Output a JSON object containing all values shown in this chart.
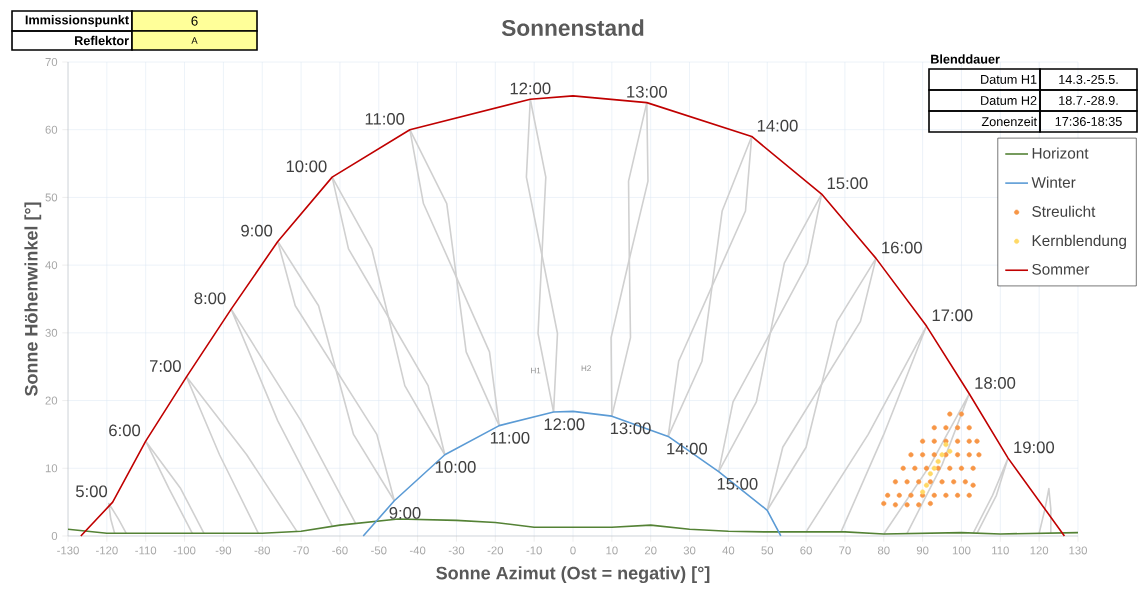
{
  "chart_data": {
    "type": "line",
    "title": "Sonnenstand",
    "xlabel": "Sonne Azimut (Ost = negativ) [°]",
    "ylabel": "Sonne Höhenwinkel [°]",
    "xlim": [
      -130,
      130
    ],
    "xticks": [
      -130,
      -120,
      -110,
      -100,
      -90,
      -80,
      -70,
      -60,
      -50,
      -40,
      -30,
      -20,
      -10,
      0,
      10,
      20,
      30,
      40,
      50,
      60,
      70,
      80,
      90,
      100,
      110,
      120,
      130
    ],
    "ylim": [
      0,
      70
    ],
    "yticks": [
      0,
      10,
      20,
      30,
      40,
      50,
      60,
      70
    ],
    "grid": true,
    "legend": "top right",
    "series": [
      {
        "color": "#d0d0d0",
        "x": [
          -118,
          -119,
          -119.5,
          -117,
          -115
        ],
        "values": [
          0.4,
          2.5,
          4.8,
          2.5,
          0.4
        ]
      },
      {
        "color": "#d0d0d0",
        "x": [
          -98,
          -104,
          -110,
          -101,
          -95
        ],
        "values": [
          0.4,
          7,
          14,
          7,
          0.4
        ]
      },
      {
        "color": "#d0d0d0",
        "x": [
          -81,
          -91,
          -99.5,
          -84,
          -71
        ],
        "values": [
          0.4,
          12,
          23.5,
          12,
          0.6
        ]
      },
      {
        "color": "#d0d0d0",
        "x": [
          -62,
          -76,
          -88,
          -70,
          -56
        ],
        "values": [
          1.5,
          17,
          33.5,
          17,
          1.9
        ]
      },
      {
        "color": "#d0d0d0",
        "x": [
          -76,
          -71.5,
          -61,
          -50.5,
          -46
        ],
        "values": [
          43.5,
          34,
          24.5,
          15,
          5.2
        ]
      },
      {
        "color": "#d0d0d0",
        "x": [
          -76,
          -65.5,
          -61,
          -56.5,
          -46
        ],
        "values": [
          43.5,
          34,
          24.5,
          15,
          5.2
        ]
      },
      {
        "color": "#d0d0d0",
        "x": [
          -62,
          -57.8,
          -47.5,
          -37.3,
          -33
        ],
        "values": [
          53,
          42.4,
          32.3,
          22.2,
          12
        ]
      },
      {
        "color": "#d0d0d0",
        "x": [
          -62,
          -51.8,
          -47.5,
          -43.3,
          -33
        ],
        "values": [
          53,
          42.4,
          32.3,
          22.2,
          12
        ]
      },
      {
        "color": "#d0d0d0",
        "x": [
          -42,
          -38.5,
          -30,
          -21.5,
          -19
        ],
        "values": [
          60,
          49.1,
          38.2,
          27.2,
          16.3
        ]
      },
      {
        "color": "#d0d0d0",
        "x": [
          -42,
          -32.5,
          -30,
          -27.5,
          -19
        ],
        "values": [
          60,
          49.1,
          38.2,
          27.2,
          16.3
        ]
      },
      {
        "color": "#d0d0d0",
        "x": [
          -11,
          -12,
          -8,
          -4,
          -5
        ],
        "values": [
          64.5,
          53,
          41.5,
          29.9,
          18.3
        ]
      },
      {
        "color": "#d0d0d0",
        "x": [
          -11,
          -7,
          -8,
          -9,
          -5
        ],
        "values": [
          64.5,
          53,
          41.5,
          29.9,
          18.3
        ]
      },
      {
        "color": "#d0d0d0",
        "x": [
          19,
          14.3,
          14.5,
          14.8,
          10
        ],
        "values": [
          64,
          52.4,
          40.9,
          29.3,
          17.7
        ]
      },
      {
        "color": "#d0d0d0",
        "x": [
          19,
          19.3,
          14.5,
          9.8,
          10
        ],
        "values": [
          64,
          52.4,
          40.9,
          29.3,
          17.7
        ]
      },
      {
        "color": "#d0d0d0",
        "x": [
          46,
          38.4,
          35.8,
          33.2,
          24.5
        ],
        "values": [
          59,
          48,
          36.9,
          25.8,
          14.7
        ]
      },
      {
        "color": "#d0d0d0",
        "x": [
          46,
          44.4,
          35.8,
          27.2,
          24.5
        ],
        "values": [
          59,
          48,
          36.9,
          25.8,
          14.7
        ]
      },
      {
        "color": "#d0d0d0",
        "x": [
          64,
          54.4,
          50.8,
          47.2,
          37.5
        ],
        "values": [
          50.5,
          40.3,
          30,
          19.8,
          9.5
        ]
      },
      {
        "color": "#d0d0d0",
        "x": [
          64,
          60.4,
          50.8,
          41.2,
          37.5
        ],
        "values": [
          50.5,
          40.3,
          30,
          19.8,
          9.5
        ]
      },
      {
        "color": "#d0d0d0",
        "x": [
          78,
          68,
          64,
          60,
          50
        ],
        "values": [
          41,
          31.7,
          22.4,
          13.1,
          3.8
        ]
      },
      {
        "color": "#d0d0d0",
        "x": [
          78,
          74,
          64,
          54,
          50
        ],
        "values": [
          41,
          31.7,
          22.4,
          13.1,
          3.8
        ]
      },
      {
        "color": "#d0d0d0",
        "x": [
          60,
          76,
          91,
          80,
          69
        ],
        "values": [
          0.6,
          15,
          31,
          15,
          0.6
        ]
      },
      {
        "color": "#d0d0d0",
        "x": [
          80,
          92,
          102,
          95,
          86
        ],
        "values": [
          0.3,
          10.5,
          21,
          10.5,
          0.4
        ]
      },
      {
        "color": "#d0d0d0",
        "x": [
          103,
          108,
          112,
          109,
          104
        ],
        "values": [
          0.4,
          6,
          11.5,
          6,
          0.4
        ]
      },
      {
        "color": "#d0d0d0",
        "x": [
          120,
          121.5,
          122.5,
          123,
          123
        ],
        "values": [
          0.4,
          4,
          7,
          4,
          0.4
        ]
      },
      {
        "name": "Horizont",
        "color": "#548235",
        "x": [
          -130,
          -120,
          -110,
          -90,
          -80,
          -70,
          -60,
          -45,
          -30,
          -20,
          -10,
          10,
          20,
          30,
          40,
          50,
          70,
          80,
          100,
          110,
          130
        ],
        "values": [
          1,
          0.4,
          0.4,
          0.4,
          0.4,
          0.7,
          1.6,
          2.5,
          2.3,
          2,
          1.3,
          1.3,
          1.6,
          1,
          0.7,
          0.6,
          0.6,
          0.3,
          0.5,
          0.3,
          0.5
        ]
      },
      {
        "name": "Winter",
        "color": "#5b9bd5",
        "x": [
          -54,
          -46,
          -33,
          -19,
          -5,
          0,
          10,
          24.5,
          37.5,
          50,
          53.5
        ],
        "values": [
          0,
          5.2,
          12,
          16.3,
          18.3,
          18.4,
          17.7,
          14.7,
          9.5,
          3.8,
          0
        ]
      },
      {
        "name": "Streulicht",
        "type": "scatter",
        "color": "#f79646",
        "x": [
          80,
          83,
          86,
          89,
          92,
          81,
          84,
          87,
          90,
          93,
          96,
          99,
          102,
          83,
          86,
          89,
          92,
          95,
          98,
          101,
          85,
          88,
          91,
          94,
          97,
          100,
          103,
          87,
          90,
          93,
          96,
          99,
          102,
          90,
          93,
          96,
          99,
          102,
          93,
          96,
          99,
          102,
          97,
          100,
          104,
          104.5,
          103
        ],
        "values": [
          4.8,
          4.6,
          4.6,
          4.6,
          4.8,
          6,
          6,
          6,
          6,
          6,
          6,
          6,
          6,
          8,
          8,
          8,
          8,
          8,
          8,
          8,
          10,
          10,
          10,
          10,
          10,
          10,
          10,
          12,
          12,
          12,
          12,
          12,
          12,
          14,
          14,
          14,
          14,
          14,
          16,
          16,
          16,
          16,
          18,
          18,
          14,
          12,
          7.5
        ]
      },
      {
        "name": "Kernblendung",
        "type": "scatter",
        "color": "#ffd966",
        "x": [
          90,
          91,
          92,
          93,
          94,
          95,
          96,
          97
        ],
        "values": [
          6.5,
          7.5,
          9.2,
          10,
          11,
          12,
          13.5,
          12.5
        ]
      },
      {
        "name": "Sommer",
        "color": "#c00000",
        "x": [
          -126.7,
          -118.5,
          -110,
          -99.5,
          -88,
          -76,
          -62,
          -42,
          -11,
          0,
          19,
          46,
          64,
          78,
          91,
          102,
          112,
          126.5
        ],
        "values": [
          0,
          5,
          14,
          23.5,
          33.5,
          43.5,
          53,
          60,
          64.5,
          65,
          64,
          59,
          50.5,
          41,
          31,
          21,
          11.5,
          0
        ]
      }
    ],
    "annotations": [
      "Immissionspunkt",
      "6",
      "Reflektor",
      "A",
      "Blenddauer",
      "Datum H1",
      "14.3.-25.5.",
      "Datum H2",
      "18.7.-28.9.",
      "Zonenzeit",
      "17:36-18:35",
      "H1",
      "H2",
      {
        "text": "5:00",
        "x": -118.5,
        "y": 5
      },
      {
        "text": "6:00",
        "x": -110,
        "y": 14
      },
      {
        "text": "7:00",
        "x": -99.5,
        "y": 23.5
      },
      {
        "text": "8:00",
        "x": -88,
        "y": 33.5
      },
      {
        "text": "9:00",
        "x": -76,
        "y": 43.5
      },
      {
        "text": "10:00",
        "x": -62,
        "y": 53
      },
      {
        "text": "11:00",
        "x": -42,
        "y": 60
      },
      {
        "text": "12:00",
        "x": -11,
        "y": 64.5
      },
      {
        "text": "13:00",
        "x": 19,
        "y": 64
      },
      {
        "text": "14:00",
        "x": 46,
        "y": 59
      },
      {
        "text": "15:00",
        "x": 64,
        "y": 50.5
      },
      {
        "text": "16:00",
        "x": 78,
        "y": 41
      },
      {
        "text": "17:00",
        "x": 91,
        "y": 31
      },
      {
        "text": "18:00",
        "x": 102,
        "y": 21
      },
      {
        "text": "19:00",
        "x": 112,
        "y": 11.5
      },
      {
        "text": "9:00",
        "x": -46,
        "y": 5.2
      },
      {
        "text": "10:00",
        "x": -33,
        "y": 12
      },
      {
        "text": "11:00",
        "x": -19,
        "y": 16.3
      },
      {
        "text": "12:00",
        "x": -5,
        "y": 18.3
      },
      {
        "text": "13:00",
        "x": 10,
        "y": 17.7
      },
      {
        "text": "14:00",
        "x": 24.5,
        "y": 14.7
      },
      {
        "text": "15:00",
        "x": 37.5,
        "y": 9.5
      }
    ]
  }
}
